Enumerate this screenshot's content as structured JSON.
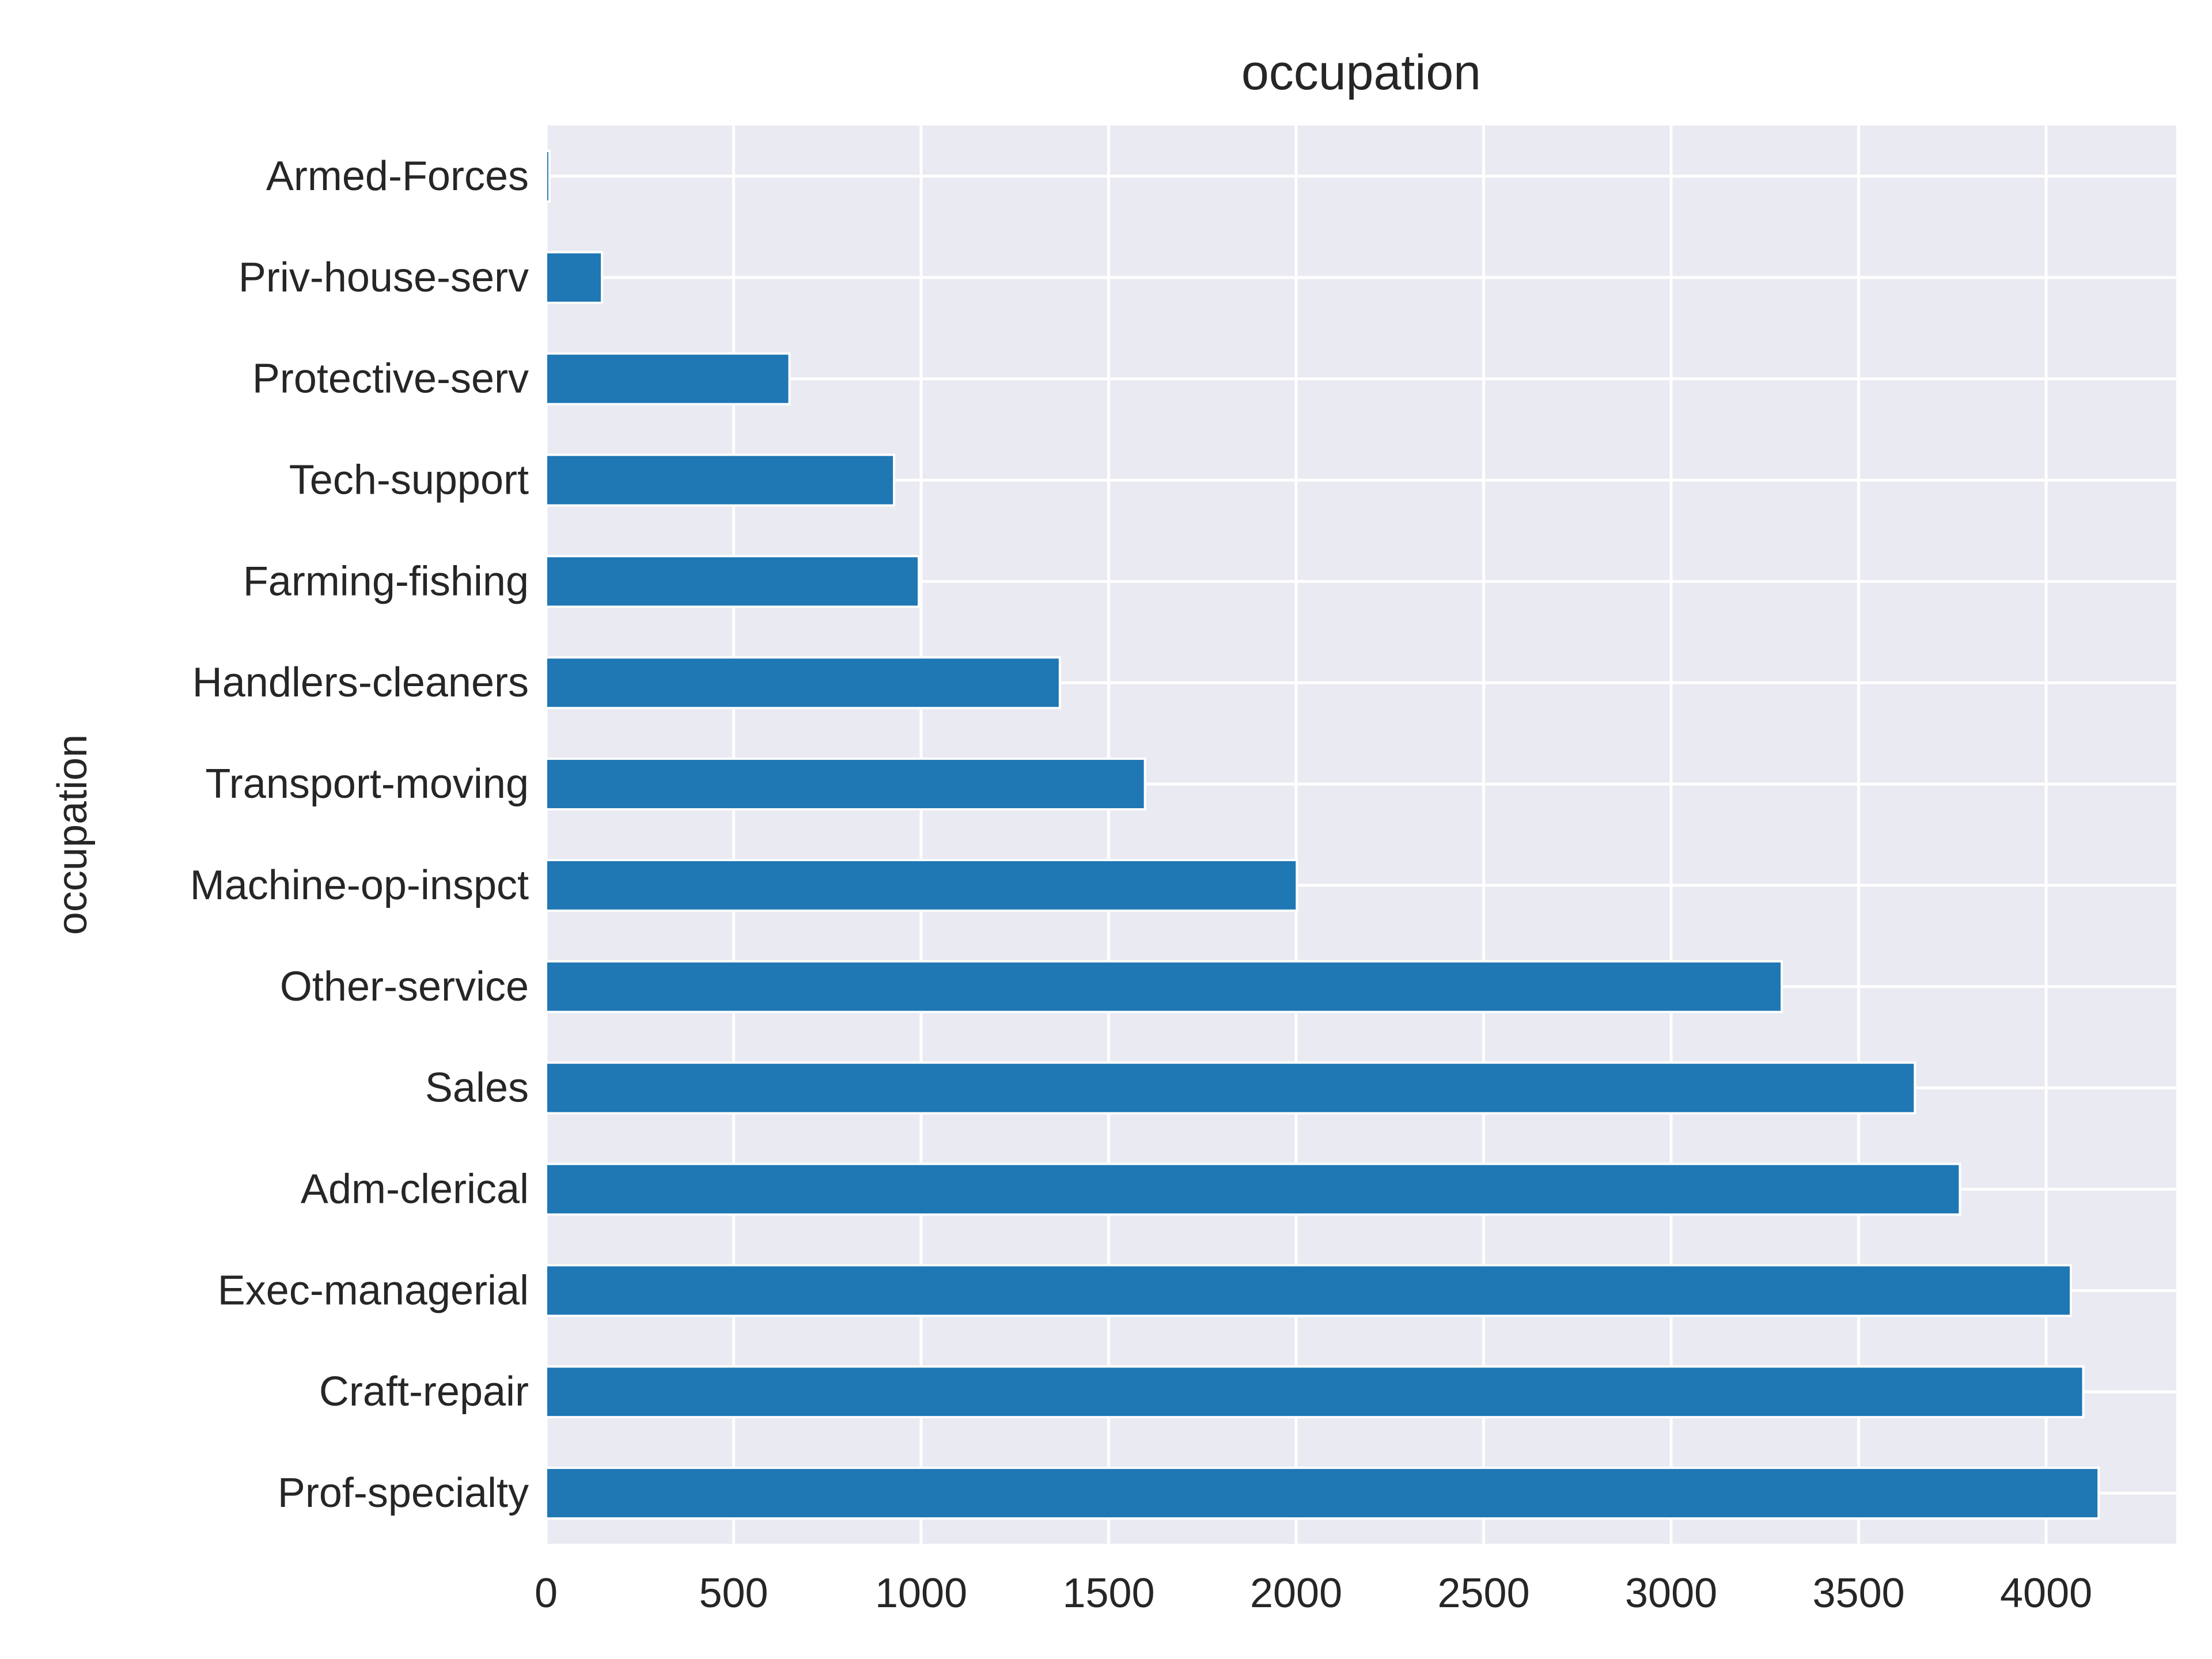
{
  "chart_data": {
    "type": "bar",
    "orientation": "horizontal",
    "title": "occupation",
    "xlabel": "",
    "ylabel": "occupation",
    "categories": [
      "Prof-specialty",
      "Craft-repair",
      "Exec-managerial",
      "Adm-clerical",
      "Sales",
      "Other-service",
      "Machine-op-inspct",
      "Transport-moving",
      "Handlers-cleaners",
      "Farming-fishing",
      "Tech-support",
      "Protective-serv",
      "Priv-house-serv",
      "Armed-Forces"
    ],
    "values": [
      4140,
      4099,
      4066,
      3770,
      3650,
      3295,
      2002,
      1597,
      1370,
      994,
      928,
      649,
      149,
      9
    ],
    "xlim": [
      0,
      4347
    ],
    "xticks": [
      0,
      500,
      1000,
      1500,
      2000,
      2500,
      3000,
      3500,
      4000
    ],
    "grid": true,
    "legend": "none",
    "colors": {
      "bar": "#1f77b4",
      "plot_background": "#eaeaf2",
      "grid": "#ffffff",
      "text": "#262626"
    }
  }
}
